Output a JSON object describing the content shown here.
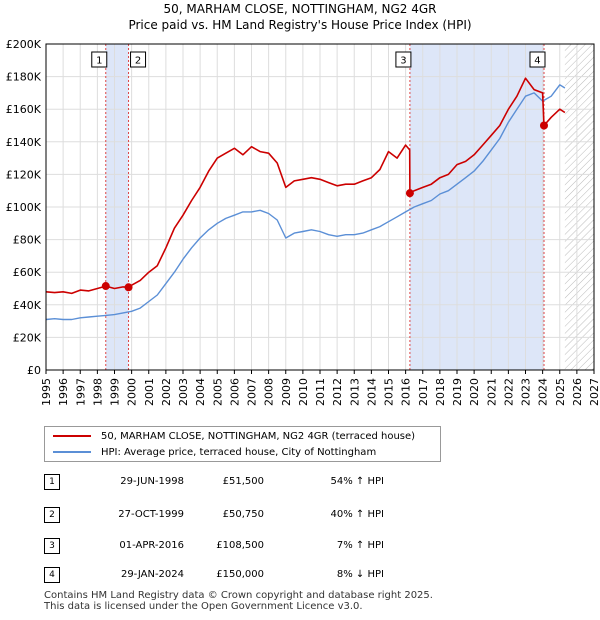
{
  "chart_data": {
    "type": "line",
    "title": "50, MARHAM CLOSE, NOTTINGHAM, NG2 4GR",
    "subtitle": "Price paid vs. HM Land Registry's House Price Index (HPI)",
    "xlim": [
      1995,
      2027
    ],
    "ylim": [
      0,
      200000
    ],
    "x_ticks": [
      1995,
      1996,
      1997,
      1998,
      1999,
      2000,
      2001,
      2002,
      2003,
      2004,
      2005,
      2006,
      2007,
      2008,
      2009,
      2010,
      2011,
      2012,
      2013,
      2014,
      2015,
      2016,
      2017,
      2018,
      2019,
      2020,
      2021,
      2022,
      2023,
      2024,
      2025,
      2026,
      2027
    ],
    "x_tick_labels": [
      "1995",
      "1996",
      "1997",
      "1998",
      "1999",
      "2000",
      "2001",
      "2002",
      "2003",
      "2004",
      "2005",
      "2006",
      "2007",
      "2008",
      "2009",
      "2010",
      "2011",
      "2012",
      "2013",
      "2014",
      "2015",
      "2016",
      "2017",
      "2018",
      "2019",
      "2020",
      "2021",
      "2022",
      "2023",
      "2024",
      "2025",
      "2026",
      "2027"
    ],
    "y_ticks": [
      0,
      20000,
      40000,
      60000,
      80000,
      100000,
      120000,
      140000,
      160000,
      180000,
      200000
    ],
    "y_tick_labels": [
      "£0",
      "£20K",
      "£40K",
      "£60K",
      "£80K",
      "£100K",
      "£120K",
      "£140K",
      "£160K",
      "£180K",
      "£200K"
    ],
    "grid": true,
    "colors": {
      "property": "#cc0000",
      "hpi": "#5b8fd6",
      "shade": "#dde6f8",
      "marker_line": "#dd4444",
      "hatch": "#bbbbbb"
    },
    "shaded_ranges": [
      [
        1998.49,
        1999.82
      ],
      [
        2016.25,
        2024.08
      ]
    ],
    "future_from": 2025.3,
    "series": [
      {
        "name": "50, MARHAM CLOSE, NOTTINGHAM, NG2 4GR (terraced house)",
        "x": [
          1995,
          1995.5,
          1996,
          1996.5,
          1997,
          1997.5,
          1998,
          1998.49,
          1999,
          1999.5,
          1999.82,
          2000,
          2000.5,
          2001,
          2001.5,
          2002,
          2002.5,
          2003,
          2003.5,
          2004,
          2004.5,
          2005,
          2005.5,
          2006,
          2006.5,
          2007,
          2007.5,
          2008,
          2008.5,
          2009,
          2009.5,
          2010,
          2010.5,
          2011,
          2011.5,
          2012,
          2012.5,
          2013,
          2013.5,
          2014,
          2014.5,
          2015,
          2015.5,
          2016,
          2016.24,
          2016.25,
          2016.5,
          2017,
          2017.5,
          2018,
          2018.5,
          2019,
          2019.5,
          2020,
          2020.5,
          2021,
          2021.5,
          2022,
          2022.5,
          2023,
          2023.5,
          2024,
          2024.08,
          2024.5,
          2025,
          2025.3
        ],
        "y": [
          48000,
          47500,
          48000,
          47000,
          49000,
          48500,
          50000,
          51500,
          50000,
          51000,
          50750,
          52000,
          55000,
          60000,
          64000,
          75000,
          87000,
          95000,
          104000,
          112000,
          122000,
          130000,
          133000,
          136000,
          132000,
          137000,
          134000,
          133000,
          127000,
          112000,
          116000,
          117000,
          118000,
          117000,
          115000,
          113000,
          114000,
          114000,
          116000,
          118000,
          123000,
          134000,
          130000,
          138000,
          135000,
          108500,
          110000,
          112000,
          114000,
          118000,
          120000,
          126000,
          128000,
          132000,
          138000,
          144000,
          150000,
          160000,
          168000,
          179000,
          172000,
          170000,
          150000,
          155000,
          160000,
          158000
        ]
      },
      {
        "name": "HPI: Average price, terraced house, City of Nottingham",
        "x": [
          1995,
          1995.5,
          1996,
          1996.5,
          1997,
          1997.5,
          1998,
          1998.5,
          1999,
          1999.5,
          2000,
          2000.5,
          2001,
          2001.5,
          2002,
          2002.5,
          2003,
          2003.5,
          2004,
          2004.5,
          2005,
          2005.5,
          2006,
          2006.5,
          2007,
          2007.5,
          2008,
          2008.5,
          2009,
          2009.5,
          2010,
          2010.5,
          2011,
          2011.5,
          2012,
          2012.5,
          2013,
          2013.5,
          2014,
          2014.5,
          2015,
          2015.5,
          2016,
          2016.5,
          2017,
          2017.5,
          2018,
          2018.5,
          2019,
          2019.5,
          2020,
          2020.5,
          2021,
          2021.5,
          2022,
          2022.5,
          2023,
          2023.5,
          2024,
          2024.5,
          2025,
          2025.3
        ],
        "y": [
          31000,
          31500,
          31000,
          31000,
          32000,
          32500,
          33000,
          33500,
          34000,
          35000,
          36000,
          38000,
          42000,
          46000,
          53000,
          60000,
          68000,
          75000,
          81000,
          86000,
          90000,
          93000,
          95000,
          97000,
          97000,
          98000,
          96000,
          92000,
          81000,
          84000,
          85000,
          86000,
          85000,
          83000,
          82000,
          83000,
          83000,
          84000,
          86000,
          88000,
          91000,
          94000,
          97000,
          100000,
          102000,
          104000,
          108000,
          110000,
          114000,
          118000,
          122000,
          128000,
          135000,
          142000,
          152000,
          160000,
          168000,
          170000,
          165000,
          168000,
          175000,
          173000
        ]
      }
    ],
    "markers": [
      {
        "label": "1",
        "x": 1998.49,
        "y": 51500
      },
      {
        "label": "2",
        "x": 1999.82,
        "y": 50750
      },
      {
        "label": "3",
        "x": 2016.25,
        "y": 108500
      },
      {
        "label": "4",
        "x": 2024.08,
        "y": 150000
      }
    ]
  },
  "legend": {
    "property": "50, MARHAM CLOSE, NOTTINGHAM, NG2 4GR (terraced house)",
    "hpi": "HPI: Average price, terraced house, City of Nottingham"
  },
  "sales": [
    {
      "label": "1",
      "date": "29-JUN-1998",
      "price": "£51,500",
      "hpi": "54% ↑ HPI"
    },
    {
      "label": "2",
      "date": "27-OCT-1999",
      "price": "£50,750",
      "hpi": "40% ↑ HPI"
    },
    {
      "label": "3",
      "date": "01-APR-2016",
      "price": "£108,500",
      "hpi": "7% ↑ HPI"
    },
    {
      "label": "4",
      "date": "29-JAN-2024",
      "price": "£150,000",
      "hpi": "8% ↓ HPI"
    }
  ],
  "footer": {
    "line1": "Contains HM Land Registry data © Crown copyright and database right 2025.",
    "line2": "This data is licensed under the Open Government Licence v3.0."
  }
}
